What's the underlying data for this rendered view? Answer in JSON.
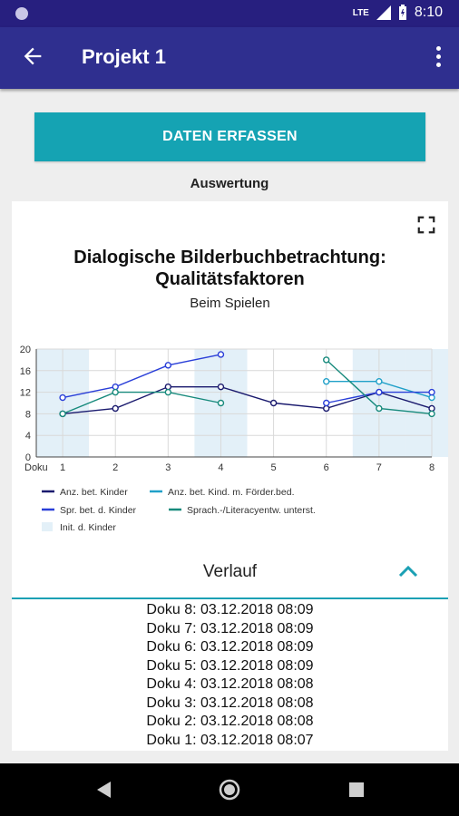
{
  "status_bar": {
    "network": "LTE",
    "time": "8:10"
  },
  "app_bar": {
    "title": "Projekt 1"
  },
  "actions": {
    "capture_button": "DATEN ERFASSEN"
  },
  "section": {
    "label": "Auswertung"
  },
  "chart_data": {
    "type": "line",
    "title": "Dialogische Bilderbuchbetrachtung: Qualitätsfaktoren",
    "subtitle": "Beim Spielen",
    "xlabel": "Doku",
    "x": [
      1,
      2,
      3,
      4,
      5,
      6,
      7,
      8
    ],
    "ylim": [
      0,
      20
    ],
    "yticks": [
      0,
      4,
      8,
      12,
      16,
      20
    ],
    "grid": true,
    "legend_position": "bottom",
    "series": [
      {
        "name": "Anz. bet. Kinder",
        "color": "#1a1a6e",
        "values": [
          8,
          9,
          13,
          13,
          10,
          9,
          12,
          9
        ]
      },
      {
        "name": "Anz. bet. Kind. m. Förder.bed.",
        "color": "#20a0c8",
        "values": [
          null,
          null,
          null,
          null,
          null,
          14,
          14,
          11
        ]
      },
      {
        "name": "Spr. bet. d. Kinder",
        "color": "#2a3fd8",
        "values": [
          11,
          13,
          17,
          19,
          null,
          10,
          12,
          12
        ]
      },
      {
        "name": "Sprach.-/Literacyentw. unterst.",
        "color": "#178a7c",
        "values": [
          8,
          12,
          12,
          10,
          null,
          18,
          9,
          8
        ]
      }
    ],
    "shaded": {
      "name": "Init. d. Kinder",
      "color": "#e3f0f8",
      "x": [
        1,
        4,
        7,
        8
      ]
    }
  },
  "verlauf": {
    "label": "Verlauf",
    "entries": [
      "Doku 8: 03.12.2018 08:09",
      "Doku 7: 03.12.2018 08:09",
      "Doku 6: 03.12.2018 08:09",
      "Doku 5: 03.12.2018 08:09",
      "Doku 4: 03.12.2018 08:08",
      "Doku 3: 03.12.2018 08:08",
      "Doku 2: 03.12.2018 08:08",
      "Doku 1: 03.12.2018 08:07"
    ]
  },
  "icons": {
    "back": "arrow-left-icon",
    "menu": "more-vertical-icon",
    "fullscreen": "fullscreen-icon",
    "collapse": "chevron-up-icon",
    "nav": [
      "back-triangle-icon",
      "home-circle-icon",
      "recents-square-icon"
    ]
  },
  "colors": {
    "primary": "#2f2f8f",
    "status_bar": "#271f7f",
    "accent": "#15a3b3"
  }
}
